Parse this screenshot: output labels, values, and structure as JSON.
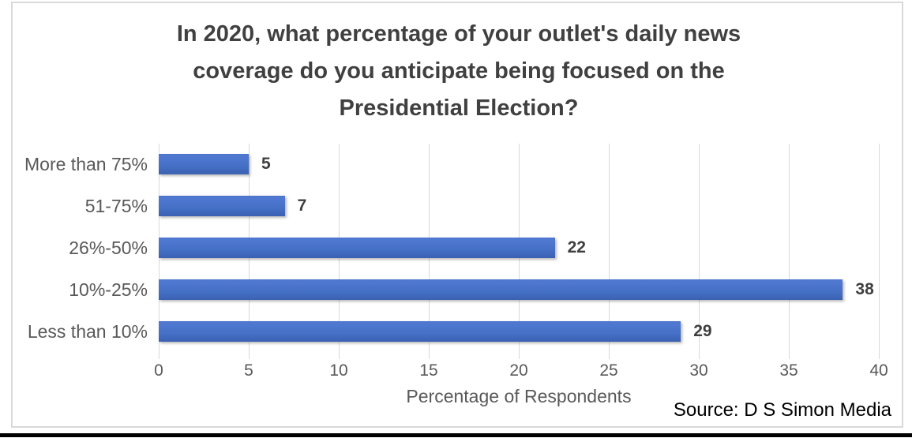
{
  "chart_data": {
    "type": "bar",
    "orientation": "horizontal",
    "title_lines": [
      "In 2020, what percentage of your outlet's daily news",
      "coverage do you anticipate being focused on the",
      "Presidential Election?"
    ],
    "categories": [
      "More than 75%",
      "51-75%",
      "26%-50%",
      "10%-25%",
      "Less than 10%"
    ],
    "values": [
      5,
      7,
      22,
      38,
      29
    ],
    "xlabel": "Percentage of Respondents",
    "xlim": [
      0,
      40
    ],
    "xticks": [
      0,
      5,
      10,
      15,
      20,
      25,
      30,
      35,
      40
    ],
    "grid": "vertical-gridlines",
    "legend": "none",
    "bar_color": "#4472c4",
    "source": "Source: D S Simon Media"
  },
  "colors": {
    "title_text": "#404040",
    "axis_text": "#595959",
    "value_label_text": "#3f3f3f",
    "gridline": "#d9d9d9",
    "frame_border": "#d9d9d9",
    "bottom_bar": "#000000",
    "background": "#ffffff"
  }
}
